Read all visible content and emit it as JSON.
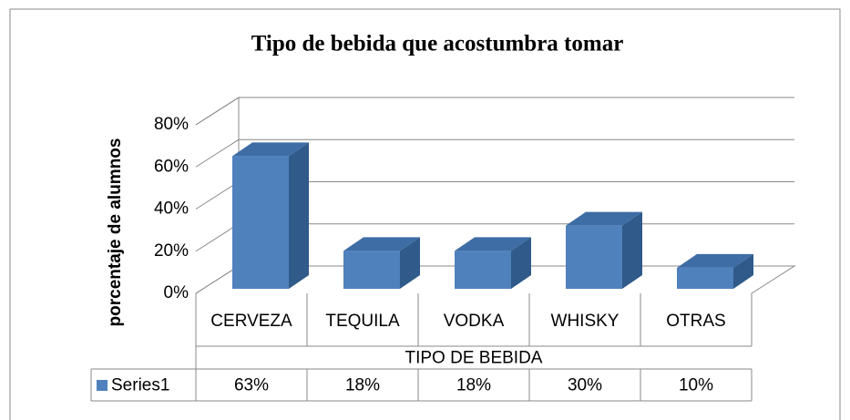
{
  "chart_data": {
    "type": "bar3d",
    "title": "Tipo de bebida que acostumbra tomar",
    "x_label": "TIPO DE BEBIDA",
    "y_label": "porcentaje de alumnos",
    "categories": [
      "CERVEZA",
      "TEQUILA",
      "VODKA",
      "WHISKY",
      "OTRAS"
    ],
    "series": [
      {
        "name": "Series1",
        "color": "#4f81bd",
        "values": [
          63,
          18,
          18,
          30,
          10
        ],
        "value_labels": [
          "63%",
          "18%",
          "18%",
          "30%",
          "10%"
        ]
      }
    ],
    "ylim": [
      0,
      80
    ],
    "yticks": [
      {
        "value": 0,
        "label": "0%"
      },
      {
        "value": 20,
        "label": "20%"
      },
      {
        "value": 40,
        "label": "40%"
      },
      {
        "value": 60,
        "label": "60%"
      },
      {
        "value": 80,
        "label": "80%"
      }
    ],
    "grid": true,
    "data_table": true
  }
}
